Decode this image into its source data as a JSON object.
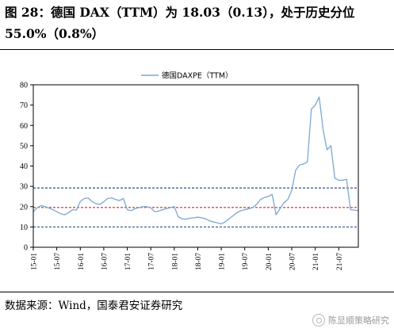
{
  "title": "图 28：德国 DAX（TTM）为 18.03（0.13），处于历史分位 55.0%（0.8%）",
  "source": "数据来源：Wind，国泰君安证券研究",
  "watermark": "陈显顺策略研究",
  "watermark_icon": "wechat-icon",
  "chart_data": {
    "type": "line",
    "series": [
      {
        "name": "德国DAXPE（TTM）",
        "color": "#7BA7D4",
        "points": [
          [
            "15-01",
            17.5
          ],
          [
            "15-02",
            19.5
          ],
          [
            "15-03",
            20.5
          ],
          [
            "15-04",
            20.0
          ],
          [
            "15-05",
            19.3
          ],
          [
            "15-06",
            18.5
          ],
          [
            "15-07",
            17.5
          ],
          [
            "15-08",
            16.5
          ],
          [
            "15-09",
            16.0
          ],
          [
            "15-10",
            17.0
          ],
          [
            "15-11",
            18.5
          ],
          [
            "15-12",
            18.3
          ],
          [
            "16-01",
            22.5
          ],
          [
            "16-02",
            24.0
          ],
          [
            "16-03",
            24.3
          ],
          [
            "16-04",
            22.5
          ],
          [
            "16-05",
            21.5
          ],
          [
            "16-06",
            21.0
          ],
          [
            "16-07",
            22.5
          ],
          [
            "16-08",
            24.0
          ],
          [
            "16-09",
            24.3
          ],
          [
            "16-10",
            23.5
          ],
          [
            "16-11",
            23.0
          ],
          [
            "16-12",
            24.0
          ],
          [
            "17-01",
            18.5
          ],
          [
            "17-02",
            18.0
          ],
          [
            "17-03",
            19.0
          ],
          [
            "17-04",
            19.5
          ],
          [
            "17-05",
            20.0
          ],
          [
            "17-06",
            20.0
          ],
          [
            "17-07",
            19.5
          ],
          [
            "17-08",
            17.5
          ],
          [
            "17-09",
            17.8
          ],
          [
            "17-10",
            18.5
          ],
          [
            "17-11",
            19.0
          ],
          [
            "17-12",
            19.5
          ],
          [
            "18-01",
            20.0
          ],
          [
            "18-02",
            15.0
          ],
          [
            "18-03",
            14.0
          ],
          [
            "18-04",
            13.8
          ],
          [
            "18-05",
            14.3
          ],
          [
            "18-06",
            14.5
          ],
          [
            "18-07",
            14.8
          ],
          [
            "18-08",
            14.5
          ],
          [
            "18-09",
            14.0
          ],
          [
            "18-10",
            13.0
          ],
          [
            "18-11",
            12.5
          ],
          [
            "18-12",
            12.0
          ],
          [
            "19-01",
            11.5
          ],
          [
            "19-02",
            12.5
          ],
          [
            "19-03",
            14.0
          ],
          [
            "19-04",
            15.5
          ],
          [
            "19-05",
            17.0
          ],
          [
            "19-06",
            18.0
          ],
          [
            "19-07",
            18.5
          ],
          [
            "19-08",
            19.0
          ],
          [
            "19-09",
            19.5
          ],
          [
            "19-10",
            21.0
          ],
          [
            "19-11",
            23.5
          ],
          [
            "19-12",
            24.5
          ],
          [
            "20-01",
            25.0
          ],
          [
            "20-02",
            26.0
          ],
          [
            "20-03",
            16.0
          ],
          [
            "20-04",
            19.0
          ],
          [
            "20-05",
            22.0
          ],
          [
            "20-06",
            23.5
          ],
          [
            "20-07",
            28.0
          ],
          [
            "20-08",
            38.0
          ],
          [
            "20-09",
            40.5
          ],
          [
            "20-10",
            41.0
          ],
          [
            "20-11",
            42.0
          ],
          [
            "20-12",
            68.0
          ],
          [
            "21-01",
            70.0
          ],
          [
            "21-02",
            74.0
          ],
          [
            "21-03",
            58.0
          ],
          [
            "21-04",
            48.0
          ],
          [
            "21-05",
            50.0
          ],
          [
            "21-06",
            34.0
          ],
          [
            "21-07",
            33.0
          ],
          [
            "21-08",
            33.0
          ],
          [
            "21-09",
            33.5
          ],
          [
            "21-10",
            18.5
          ],
          [
            "21-11",
            18.3
          ],
          [
            "21-12",
            18.0
          ]
        ]
      }
    ],
    "reference_lines": [
      {
        "value": 29.2,
        "color": "#1F3A7A",
        "style": "dashed"
      },
      {
        "value": 19.6,
        "color": "#E02020",
        "style": "dashed"
      },
      {
        "value": 10.0,
        "color": "#1F3A7A",
        "style": "dashed"
      }
    ],
    "x_ticks": [
      "15-01",
      "15-07",
      "16-01",
      "16-07",
      "17-01",
      "17-07",
      "18-01",
      "18-07",
      "19-01",
      "19-07",
      "20-01",
      "20-07",
      "21-01",
      "21-07"
    ],
    "y_ticks": [
      0,
      10,
      20,
      30,
      40,
      50,
      60,
      70,
      80
    ],
    "ylim": [
      0,
      80
    ],
    "legend_position": "top-center",
    "grid": false
  }
}
